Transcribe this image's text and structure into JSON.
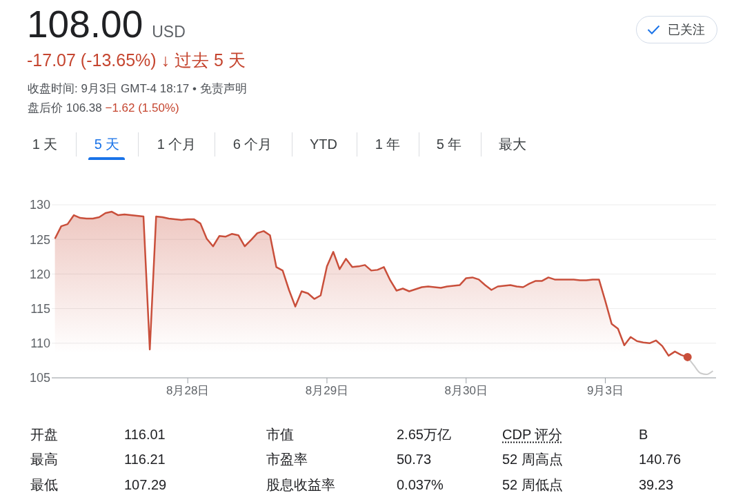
{
  "chart_data": {
    "type": "area",
    "title": "108.00 USD",
    "subtitle": "-17.07 (-13.65%) ↓ 过去 5 天",
    "annotations": [
      "收盘时间: 9月3日 GMT-4 18:17 • 免责声明",
      "盘后价 106.38",
      "−1.62 (1.50%)",
      "已关注",
      "1 天",
      "5 天",
      "1 个月",
      "6 个月",
      "YTD",
      "1 年",
      "5 年",
      "最大",
      "开盘",
      "116.01",
      "市值",
      "2.65万亿",
      "CDP 评分",
      "B",
      "最高",
      "116.21",
      "市盈率",
      "50.73",
      "52 周高点",
      "140.76",
      "最低",
      "107.29",
      "股息收益率",
      "0.037%",
      "52 周低点",
      "39.23"
    ],
    "categories": [
      null,
      null,
      null,
      null,
      null,
      null,
      null,
      null,
      null,
      null,
      null,
      null,
      null,
      null,
      null,
      null,
      null,
      null,
      null,
      null,
      null,
      "8月28日",
      null,
      null,
      null,
      null,
      null,
      null,
      null,
      null,
      null,
      null,
      null,
      null,
      null,
      null,
      null,
      null,
      null,
      null,
      null,
      null,
      null,
      "8月29日",
      null,
      null,
      null,
      null,
      null,
      null,
      null,
      null,
      null,
      null,
      null,
      null,
      null,
      null,
      null,
      null,
      null,
      null,
      null,
      null,
      null,
      "8月30日",
      null,
      null,
      null,
      null,
      null,
      null,
      null,
      null,
      null,
      null,
      null,
      null,
      null,
      null,
      null,
      null,
      null,
      null,
      null,
      null,
      null,
      "9月3日",
      null,
      null,
      null,
      null,
      null,
      null,
      null,
      null,
      null,
      null,
      null,
      null,
      null,
      null,
      null,
      null,
      null
    ],
    "ylim": [
      105,
      130
    ],
    "yticks": [
      105,
      110,
      115,
      120,
      125,
      130
    ],
    "grid": "y",
    "series": [
      {
        "color": "#c94f3b",
        "values": [
          125.1,
          126.9,
          127.2,
          128.5,
          128.1,
          128.0,
          128.0,
          128.2,
          128.8,
          129.0,
          128.5,
          128.6,
          128.5,
          128.4,
          128.3,
          109.1,
          128.3,
          128.2,
          128.0,
          127.9,
          127.8,
          127.9,
          127.9,
          127.3,
          125.1,
          124.0,
          125.5,
          125.4,
          125.8,
          125.6,
          124.0,
          124.9,
          125.9,
          126.2,
          125.6,
          121.0,
          120.5,
          117.7,
          115.3,
          117.5,
          117.2,
          116.4,
          116.9,
          121.1,
          123.2,
          120.7,
          122.2,
          121.0,
          121.1,
          121.3,
          120.5,
          120.6,
          121.0,
          119.1,
          117.6,
          117.9,
          117.5,
          117.8,
          118.1,
          118.2,
          118.1,
          118.0,
          118.2,
          118.3,
          118.4,
          119.4,
          119.5,
          119.2,
          118.4,
          117.7,
          118.2,
          118.3,
          118.4,
          118.2,
          118.1,
          118.6,
          119.0,
          119.0,
          119.5,
          119.2,
          119.2,
          119.2,
          119.2,
          119.1,
          119.1,
          119.2,
          119.2,
          116.1,
          112.8,
          112.1,
          109.7,
          110.9,
          110.3,
          110.1,
          110.0,
          110.4,
          109.6,
          108.2,
          108.8,
          108.3,
          108.0,
          null,
          null,
          null,
          null
        ]
      },
      {
        "type": "line",
        "color": "#cccccc",
        "values": [
          null,
          null,
          null,
          null,
          null,
          null,
          null,
          null,
          null,
          null,
          null,
          null,
          null,
          null,
          null,
          null,
          null,
          null,
          null,
          null,
          null,
          null,
          null,
          null,
          null,
          null,
          null,
          null,
          null,
          null,
          null,
          null,
          null,
          null,
          null,
          null,
          null,
          null,
          null,
          null,
          null,
          null,
          null,
          null,
          null,
          null,
          null,
          null,
          null,
          null,
          null,
          null,
          null,
          null,
          null,
          null,
          null,
          null,
          null,
          null,
          null,
          null,
          null,
          null,
          null,
          null,
          null,
          null,
          null,
          null,
          null,
          null,
          null,
          null,
          null,
          null,
          null,
          null,
          null,
          null,
          null,
          null,
          null,
          null,
          null,
          null,
          null,
          null,
          null,
          null,
          null,
          null,
          null,
          null,
          null,
          null,
          null,
          null,
          null,
          null,
          108.0,
          106.8,
          105.7,
          105.5,
          106.0
        ]
      },
      {
        "type": "scatter",
        "color": "#c94f3b",
        "marker": "circle",
        "values": [
          null,
          null,
          null,
          null,
          null,
          null,
          null,
          null,
          null,
          null,
          null,
          null,
          null,
          null,
          null,
          null,
          null,
          null,
          null,
          null,
          null,
          null,
          null,
          null,
          null,
          null,
          null,
          null,
          null,
          null,
          null,
          null,
          null,
          null,
          null,
          null,
          null,
          null,
          null,
          null,
          null,
          null,
          null,
          null,
          null,
          null,
          null,
          null,
          null,
          null,
          null,
          null,
          null,
          null,
          null,
          null,
          null,
          null,
          null,
          null,
          null,
          null,
          null,
          null,
          null,
          null,
          null,
          null,
          null,
          null,
          null,
          null,
          null,
          null,
          null,
          null,
          null,
          null,
          null,
          null,
          null,
          null,
          null,
          null,
          null,
          null,
          null,
          null,
          null,
          null,
          null,
          null,
          null,
          null,
          null,
          null,
          null,
          null,
          null,
          null,
          108.0,
          null,
          null,
          null,
          null
        ]
      }
    ]
  }
}
